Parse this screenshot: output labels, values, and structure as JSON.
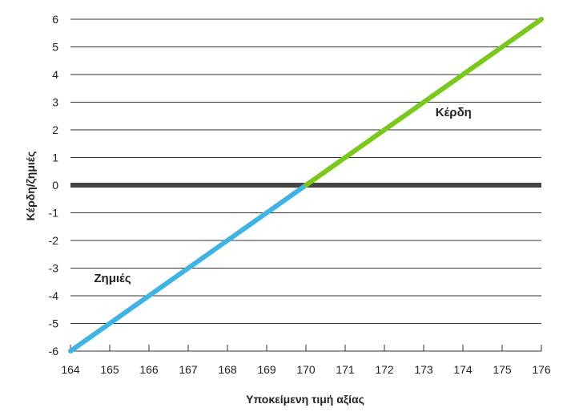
{
  "chart_data": {
    "type": "line",
    "title": "",
    "xlabel": "Υποκείμενη τιμή αξίας",
    "ylabel": "Κέρδη/ζημιές",
    "xlim": [
      164,
      176
    ],
    "ylim": [
      -6,
      6
    ],
    "x_ticks": [
      "164",
      "165",
      "166",
      "167",
      "168",
      "169",
      "170",
      "171",
      "172",
      "173",
      "174",
      "175",
      "176"
    ],
    "y_ticks": [
      "-6",
      "-5",
      "-4",
      "-3",
      "-2",
      "-1",
      "0",
      "1",
      "2",
      "3",
      "4",
      "5",
      "6"
    ],
    "grid": "horizontal",
    "zero_line": true,
    "series": [
      {
        "name": "Ζημιές",
        "x": [
          164,
          170
        ],
        "y": [
          -6,
          0
        ],
        "color": "#3db4e5"
      },
      {
        "name": "Κέρδη",
        "x": [
          170,
          176
        ],
        "y": [
          0,
          6
        ],
        "color": "#7ac91a"
      }
    ],
    "annotations": [
      {
        "text": "Κέρδη",
        "x": 173.3,
        "y": 2.5
      },
      {
        "text": "Ζημιές",
        "x": 164.6,
        "y": -3.5
      }
    ],
    "colors": {
      "loss": "#3db4e5",
      "profit": "#7ac91a",
      "zero_line": "#444444",
      "grid": "#333333"
    }
  }
}
